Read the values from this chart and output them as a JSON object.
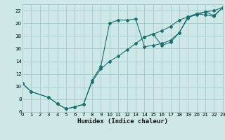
{
  "xlabel": "Humidex (Indice chaleur)",
  "bg_color": "#cde8e6",
  "grid_color": "#aacece",
  "line_color": "#1a7070",
  "xlim": [
    0,
    23
  ],
  "ylim": [
    6,
    23
  ],
  "xticks": [
    0,
    1,
    2,
    3,
    4,
    5,
    6,
    7,
    8,
    9,
    10,
    11,
    12,
    13,
    14,
    15,
    16,
    17,
    18,
    19,
    20,
    21,
    22,
    23
  ],
  "yticks": [
    6,
    8,
    10,
    12,
    14,
    16,
    18,
    20,
    22
  ],
  "line1_x": [
    0,
    1,
    3,
    4,
    5,
    6,
    7,
    8,
    9,
    10,
    11,
    12,
    13,
    14,
    15,
    16,
    17,
    18,
    19,
    20,
    21,
    22,
    23
  ],
  "line1_y": [
    10.5,
    9.2,
    8.3,
    7.3,
    6.5,
    6.8,
    7.2,
    11.0,
    13.2,
    20.0,
    20.5,
    20.5,
    20.7,
    16.3,
    16.5,
    16.8,
    17.3,
    18.5,
    20.8,
    21.5,
    21.3,
    21.1,
    22.5
  ],
  "line2_x": [
    0,
    1,
    3,
    4,
    5,
    6,
    7,
    8,
    9,
    10,
    11,
    12,
    13,
    14,
    15,
    16,
    17,
    18,
    19,
    20,
    21,
    22,
    23
  ],
  "line2_y": [
    10.5,
    9.2,
    8.3,
    7.3,
    6.5,
    6.8,
    7.2,
    10.8,
    12.8,
    14.0,
    14.8,
    15.8,
    16.8,
    17.8,
    18.3,
    18.8,
    19.5,
    20.5,
    21.0,
    21.5,
    21.8,
    22.0,
    22.5
  ],
  "line3_x": [
    14,
    15,
    16,
    17,
    18,
    19,
    20,
    21,
    22,
    23
  ],
  "line3_y": [
    17.8,
    18.3,
    16.5,
    17.0,
    18.5,
    21.0,
    21.3,
    21.8,
    21.2,
    22.5
  ]
}
